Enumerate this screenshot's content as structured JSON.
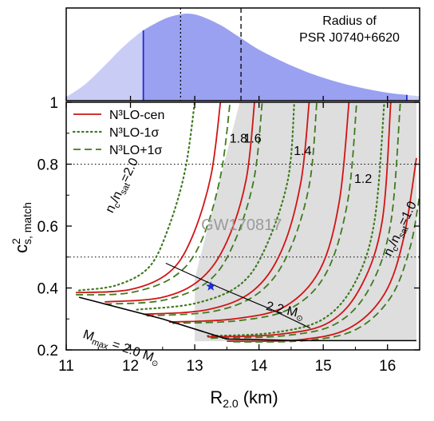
{
  "colors": {
    "density_fill_light": "#c9cdf6",
    "density_fill_dark": "#9aa1f0",
    "percentile_line": "#1f2bd6",
    "n3lo_cen": "#d11414",
    "n3lo_band": "#3f7a1f",
    "gw_region": "#dedede",
    "star": "#1f2bd6",
    "axis": "#000000"
  },
  "chart_data": [
    {
      "type": "area",
      "title": "Radius of\nPSR J0740+6620",
      "title_lines": [
        "Radius of",
        "PSR J0740+6620"
      ],
      "xlim": [
        11.0,
        16.5
      ],
      "x": [
        11.0,
        11.3,
        11.6,
        11.9,
        12.2,
        12.5,
        12.7,
        12.9,
        13.1,
        13.4,
        13.7,
        14.0,
        14.5,
        15.0,
        15.5,
        16.0,
        16.5
      ],
      "density": [
        0.04,
        0.19,
        0.4,
        0.62,
        0.8,
        0.92,
        0.97,
        0.99,
        0.96,
        0.86,
        0.72,
        0.58,
        0.4,
        0.26,
        0.16,
        0.09,
        0.05
      ],
      "shaded_range": [
        12.2,
        16.3
      ],
      "percentile_lines": [
        {
          "x": 12.2,
          "style": "solid"
        },
        {
          "x": 12.78,
          "style": "dotted"
        },
        {
          "x": 13.72,
          "style": "dashed"
        },
        {
          "x": 16.3,
          "style": "solid"
        }
      ]
    },
    {
      "type": "line",
      "xlabel": "R",
      "xlabel_sub": "2.0",
      "xlabel_unit": "(km)",
      "ylabel": "c",
      "ylabel_sup": "2",
      "ylabel_sub": "s, match",
      "xlim": [
        11.0,
        16.5
      ],
      "ylim": [
        0.2,
        1.0
      ],
      "xticks": [
        "11",
        "12",
        "13",
        "14",
        "15",
        "16"
      ],
      "yticks": [
        "0.2",
        "0.4",
        "0.6",
        "0.8",
        "1"
      ],
      "reference_lines": [
        0.5,
        0.8
      ],
      "legend": {
        "position": "top-left",
        "entries": [
          {
            "label": "N³LO-cen",
            "style": "solid"
          },
          {
            "label": "N³LO-1σ",
            "style": "dotted"
          },
          {
            "label": "N³LO+1σ",
            "style": "dashed"
          }
        ]
      },
      "gw_region": {
        "label": "GW170817",
        "polygon": [
          [
            13.0,
            0.228
          ],
          [
            13.0,
            0.43
          ],
          [
            13.7,
            1.0
          ],
          [
            16.45,
            1.0
          ],
          [
            16.45,
            0.228
          ]
        ]
      },
      "star": {
        "x": 13.25,
        "y": 0.405
      },
      "series": [
        {
          "style": "dotted",
          "points": [
            [
              11.2,
              0.392
            ],
            [
              11.8,
              0.41
            ],
            [
              12.3,
              0.47
            ],
            [
              12.6,
              0.6
            ],
            [
              12.85,
              0.78
            ],
            [
              13.0,
              1.0
            ]
          ]
        },
        {
          "style": "solid",
          "points": [
            [
              11.15,
              0.385
            ],
            [
              12.0,
              0.395
            ],
            [
              12.6,
              0.45
            ],
            [
              12.95,
              0.56
            ],
            [
              13.25,
              0.76
            ],
            [
              13.4,
              1.0
            ]
          ]
        },
        {
          "style": "dashed",
          "points": [
            [
              11.15,
              0.378
            ],
            [
              12.0,
              0.385
            ],
            [
              12.7,
              0.44
            ],
            [
              13.1,
              0.55
            ],
            [
              13.4,
              0.76
            ],
            [
              13.55,
              1.0
            ]
          ]
        },
        {
          "style": "solid",
          "points": [
            [
              11.6,
              0.355
            ],
            [
              12.5,
              0.37
            ],
            [
              13.1,
              0.43
            ],
            [
              13.5,
              0.55
            ],
            [
              13.8,
              0.75
            ],
            [
              13.93,
              1.0
            ]
          ]
        },
        {
          "style": "dashed",
          "points": [
            [
              11.6,
              0.348
            ],
            [
              12.5,
              0.36
            ],
            [
              13.2,
              0.42
            ],
            [
              13.6,
              0.54
            ],
            [
              13.92,
              0.75
            ],
            [
              14.05,
              1.0
            ]
          ]
        },
        {
          "style": "dotted",
          "points": [
            [
              12.1,
              0.33
            ],
            [
              13.0,
              0.35
            ],
            [
              13.7,
              0.41
            ],
            [
              14.1,
              0.53
            ],
            [
              14.45,
              0.75
            ],
            [
              14.55,
              1.0
            ]
          ]
        },
        {
          "style": "solid",
          "points": [
            [
              12.2,
              0.315
            ],
            [
              13.2,
              0.33
            ],
            [
              13.9,
              0.39
            ],
            [
              14.35,
              0.52
            ],
            [
              14.65,
              0.74
            ],
            [
              14.78,
              1.0
            ]
          ]
        },
        {
          "style": "dashed",
          "points": [
            [
              12.25,
              0.31
            ],
            [
              13.3,
              0.325
            ],
            [
              14.0,
              0.385
            ],
            [
              14.45,
              0.51
            ],
            [
              14.78,
              0.73
            ],
            [
              14.9,
              1.0
            ]
          ]
        },
        {
          "style": "solid",
          "points": [
            [
              12.6,
              0.29
            ],
            [
              13.6,
              0.3
            ],
            [
              14.4,
              0.34
            ],
            [
              14.95,
              0.46
            ],
            [
              15.25,
              0.68
            ],
            [
              15.4,
              1.0
            ]
          ]
        },
        {
          "style": "dashed",
          "points": [
            [
              12.65,
              0.286
            ],
            [
              13.7,
              0.295
            ],
            [
              14.5,
              0.335
            ],
            [
              15.05,
              0.45
            ],
            [
              15.38,
              0.68
            ],
            [
              15.52,
              1.0
            ]
          ]
        },
        {
          "style": "dotted",
          "points": [
            [
              13.2,
              0.245
            ],
            [
              14.2,
              0.255
            ],
            [
              15.0,
              0.3
            ],
            [
              15.5,
              0.42
            ],
            [
              15.8,
              0.62
            ],
            [
              15.95,
              1.0
            ]
          ]
        },
        {
          "style": "solid",
          "points": [
            [
              13.2,
              0.242
            ],
            [
              14.3,
              0.25
            ],
            [
              15.1,
              0.29
            ],
            [
              15.6,
              0.41
            ],
            [
              15.92,
              0.62
            ],
            [
              16.05,
              1.0
            ]
          ]
        },
        {
          "style": "dashed",
          "points": [
            [
              13.25,
              0.238
            ],
            [
              14.4,
              0.246
            ],
            [
              15.2,
              0.285
            ],
            [
              15.72,
              0.4
            ],
            [
              16.05,
              0.61
            ],
            [
              16.2,
              1.0
            ]
          ]
        },
        {
          "style": "solid",
          "points": [
            [
              13.5,
              0.228
            ],
            [
              14.6,
              0.232
            ],
            [
              15.4,
              0.27
            ],
            [
              15.95,
              0.38
            ],
            [
              16.25,
              0.56
            ],
            [
              16.45,
              0.82
            ]
          ]
        },
        {
          "style": "dashed",
          "points": [
            [
              13.6,
              0.226
            ],
            [
              14.7,
              0.23
            ],
            [
              15.5,
              0.265
            ],
            [
              16.05,
              0.37
            ],
            [
              16.35,
              0.53
            ],
            [
              16.5,
              0.7
            ]
          ]
        }
      ],
      "annotations": {
        "mmax": {
          "text": "M",
          "sub": "max",
          "rest": " = 2.0 M",
          "sun": "⊙",
          "x": 11.25,
          "y": 0.24,
          "angle": 19
        },
        "m22": {
          "text": "2.2 M",
          "sun": "⊙",
          "x": 14.1,
          "y": 0.33,
          "angle": 13
        },
        "nc20": {
          "n": "n",
          "c": "c",
          "slash": "/n",
          "sat": "sat",
          "val": "=2.0",
          "x": 11.72,
          "y": 0.64,
          "angle": -64
        },
        "nc10": {
          "n": "n",
          "c": "c",
          "slash": "/n",
          "sat": "sat",
          "val": "=1.0",
          "x": 16.05,
          "y": 0.5,
          "angle": -64
        },
        "labels": [
          {
            "text": "1.8",
            "x": 13.68,
            "y": 0.87
          },
          {
            "text": "1.6",
            "x": 13.9,
            "y": 0.87
          },
          {
            "text": "1.4",
            "x": 14.68,
            "y": 0.83
          },
          {
            "text": "1.2",
            "x": 15.62,
            "y": 0.74
          }
        ]
      },
      "mmax_line": [
        [
          11.2,
          0.37
        ],
        [
          12.5,
          0.3
        ],
        [
          13.5,
          0.235
        ],
        [
          14.7,
          0.23
        ],
        [
          16.45,
          0.23
        ]
      ],
      "m22_line": [
        [
          12.55,
          0.48
        ],
        [
          13.4,
          0.4
        ],
        [
          14.2,
          0.33
        ],
        [
          14.8,
          0.27
        ]
      ]
    }
  ]
}
